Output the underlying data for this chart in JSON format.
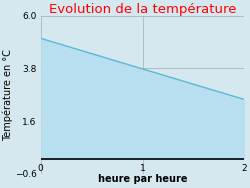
{
  "title": "Evolution de la température",
  "title_color": "#ff0000",
  "xlabel": "heure par heure",
  "ylabel": "Température en °C",
  "x_data": [
    0,
    2
  ],
  "y_data": [
    5.05,
    2.5
  ],
  "fill_color": "#b8dff0",
  "line_color": "#5ab8d4",
  "line_width": 1.0,
  "xlim": [
    0,
    2
  ],
  "ylim": [
    -0.6,
    6.0
  ],
  "yticks": [
    -0.6,
    1.6,
    3.8,
    6.0
  ],
  "xticks": [
    0,
    1,
    2
  ],
  "bg_color": "#d5e8f0",
  "plot_bg_color": "#d5e8f0",
  "grid_color": "#aaaaaa",
  "title_fontsize": 9.5,
  "label_fontsize": 7,
  "tick_fontsize": 6.5
}
